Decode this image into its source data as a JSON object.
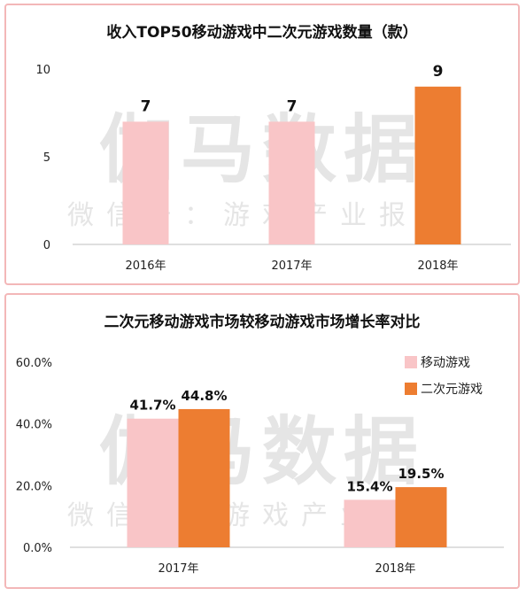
{
  "watermark": {
    "main": "伽马数据",
    "sub": "微信号：游戏产业报告"
  },
  "chart_data": [
    {
      "type": "bar",
      "title": "收入TOP50移动游戏中二次元游戏数量（款）",
      "categories": [
        "2016年",
        "2017年",
        "2018年"
      ],
      "values": [
        7,
        7,
        9
      ],
      "value_labels": [
        "7",
        "7",
        "9"
      ],
      "colors": [
        "#f9c5c7",
        "#f9c5c7",
        "#ed7d31"
      ],
      "yticks": [
        "0",
        "5",
        "10"
      ],
      "ylim": [
        0,
        10
      ],
      "grid": false
    },
    {
      "type": "bar",
      "title": "二次元移动游戏市场较移动游戏市场增长率对比",
      "categories": [
        "2017年",
        "2018年"
      ],
      "series": [
        {
          "name": "移动游戏",
          "values": [
            41.7,
            15.4
          ],
          "labels": [
            "41.7%",
            "15.4%"
          ],
          "color": "#f9c5c7"
        },
        {
          "name": "二次元游戏",
          "values": [
            44.8,
            19.5
          ],
          "labels": [
            "44.8%",
            "19.5%"
          ],
          "color": "#ed7d31"
        }
      ],
      "yticks": [
        "0.0%",
        "20.0%",
        "40.0%",
        "60.0%"
      ],
      "ylim": [
        0,
        60
      ],
      "legend": "top-right",
      "grid": false
    }
  ]
}
